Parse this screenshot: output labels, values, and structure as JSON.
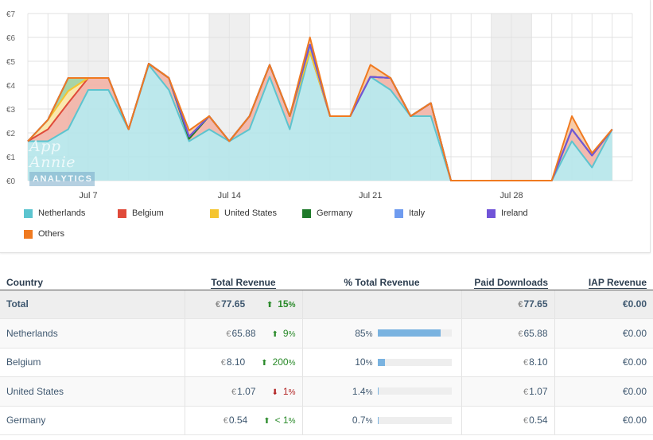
{
  "chart_data": {
    "type": "area",
    "stacked": true,
    "currency_symbol": "€",
    "ylim": [
      0,
      7
    ],
    "yticks": [
      "€0",
      "€1",
      "€2",
      "€3",
      "€4",
      "€5",
      "€6",
      "€7"
    ],
    "x_start_day": 2,
    "x_end_day": 32,
    "xticks": [
      {
        "day": 5,
        "label": "Jul 7"
      },
      {
        "day": 12,
        "label": "Jul 14"
      },
      {
        "day": 19,
        "label": "Jul 21"
      },
      {
        "day": 26,
        "label": "Jul 28"
      }
    ],
    "weekends": [
      [
        4,
        6
      ],
      [
        11,
        13
      ],
      [
        18,
        20
      ],
      [
        25,
        27
      ]
    ],
    "grid": true,
    "legend_position": "bottom",
    "series": [
      {
        "name": "Netherlands",
        "color": "#5cc4cf",
        "fill": "#b5e6ea",
        "values": [
          1.65,
          1.65,
          2.15,
          3.8,
          3.8,
          2.15,
          4.85,
          3.8,
          1.65,
          2.15,
          1.65,
          2.15,
          4.35,
          2.15,
          5.4,
          2.7,
          2.7,
          4.35,
          3.8,
          2.7,
          2.7,
          0,
          0,
          0,
          0,
          0,
          0,
          1.65,
          0.55,
          2.15
        ]
      },
      {
        "name": "Belgium",
        "color": "#e04a3a",
        "fill": "#f2b3a6",
        "values": [
          0,
          0.5,
          1.1,
          0.5,
          0.5,
          0,
          0.05,
          0.5,
          0.1,
          0.55,
          0,
          0.55,
          0.5,
          0.55,
          0,
          0,
          0,
          0,
          0.5,
          0,
          0.55,
          0,
          0,
          0,
          0,
          0,
          0,
          0.5,
          0.5,
          0
        ]
      },
      {
        "name": "United States",
        "color": "#f5c530",
        "fill": "#f9e6a6",
        "values": [
          0,
          0.4,
          0.5,
          0,
          0,
          0,
          0,
          0,
          0,
          0,
          0,
          0,
          0,
          0,
          0,
          0,
          0,
          0,
          0,
          0,
          0,
          0,
          0,
          0,
          0,
          0,
          0,
          0,
          0,
          0
        ]
      },
      {
        "name": "Germany",
        "color": "#1f7a2a",
        "fill": "#9fd0a0",
        "values": [
          0,
          0,
          0.55,
          0,
          0,
          0,
          0,
          0,
          0,
          0,
          0,
          0,
          0,
          0,
          0.3,
          0,
          0,
          0,
          0,
          0,
          0,
          0,
          0,
          0,
          0,
          0,
          0,
          0,
          0,
          0
        ]
      },
      {
        "name": "Italy",
        "color": "#6f9bef",
        "fill": "#b8cdf5",
        "values": [
          0,
          0,
          0,
          0,
          0,
          0,
          0,
          0,
          0.1,
          0,
          0,
          0,
          0,
          0,
          0,
          0,
          0,
          0,
          0,
          0,
          0,
          0,
          0,
          0,
          0,
          0,
          0,
          0,
          0,
          0
        ]
      },
      {
        "name": "Ireland",
        "color": "#7154d8",
        "fill": "#c2b5ef",
        "values": [
          0,
          0,
          0,
          0,
          0,
          0,
          0,
          0,
          0,
          0,
          0,
          0,
          0,
          0,
          0,
          0,
          0,
          0,
          0,
          0,
          0,
          0,
          0,
          0,
          0,
          0,
          0,
          0,
          0,
          0
        ]
      },
      {
        "name": "Others",
        "color": "#f07a20",
        "fill": "#f7c79e",
        "values": [
          0,
          0,
          0,
          0,
          0,
          0,
          0,
          0,
          0.25,
          0,
          0,
          0,
          0,
          0,
          0.3,
          0,
          0,
          0.5,
          0,
          0,
          0,
          0,
          0,
          0,
          0,
          0,
          0,
          0.55,
          0.1,
          0
        ]
      }
    ]
  },
  "watermark": {
    "line1": "App Annie",
    "line2": "ANALYTICS"
  },
  "table": {
    "headers": {
      "country": "Country",
      "total_revenue": "Total Revenue",
      "pct_total": "% Total Revenue",
      "paid_downloads": "Paid Downloads",
      "iap_revenue": "IAP Revenue"
    },
    "currency": "€",
    "total": {
      "label": "Total",
      "revenue": "77.65",
      "change_dir": "up",
      "change": "15",
      "paid": "77.65",
      "iap": "0.00"
    },
    "rows": [
      {
        "country": "Netherlands",
        "revenue": "65.88",
        "change_dir": "up",
        "change": "9",
        "pct": "85",
        "pct_value": 85,
        "paid": "65.88",
        "iap": "0.00"
      },
      {
        "country": "Belgium",
        "revenue": "8.10",
        "change_dir": "up",
        "change": "200",
        "pct": "10",
        "pct_value": 10,
        "paid": "8.10",
        "iap": "0.00"
      },
      {
        "country": "United States",
        "revenue": "1.07",
        "change_dir": "down",
        "change": "1",
        "pct": "1.4",
        "pct_value": 1.4,
        "paid": "1.07",
        "iap": "0.00"
      },
      {
        "country": "Germany",
        "revenue": "0.54",
        "change_dir": "up",
        "change": "< 1",
        "pct": "0.7",
        "pct_value": 0.7,
        "paid": "0.54",
        "iap": "0.00"
      }
    ],
    "pct_sign": "%"
  }
}
